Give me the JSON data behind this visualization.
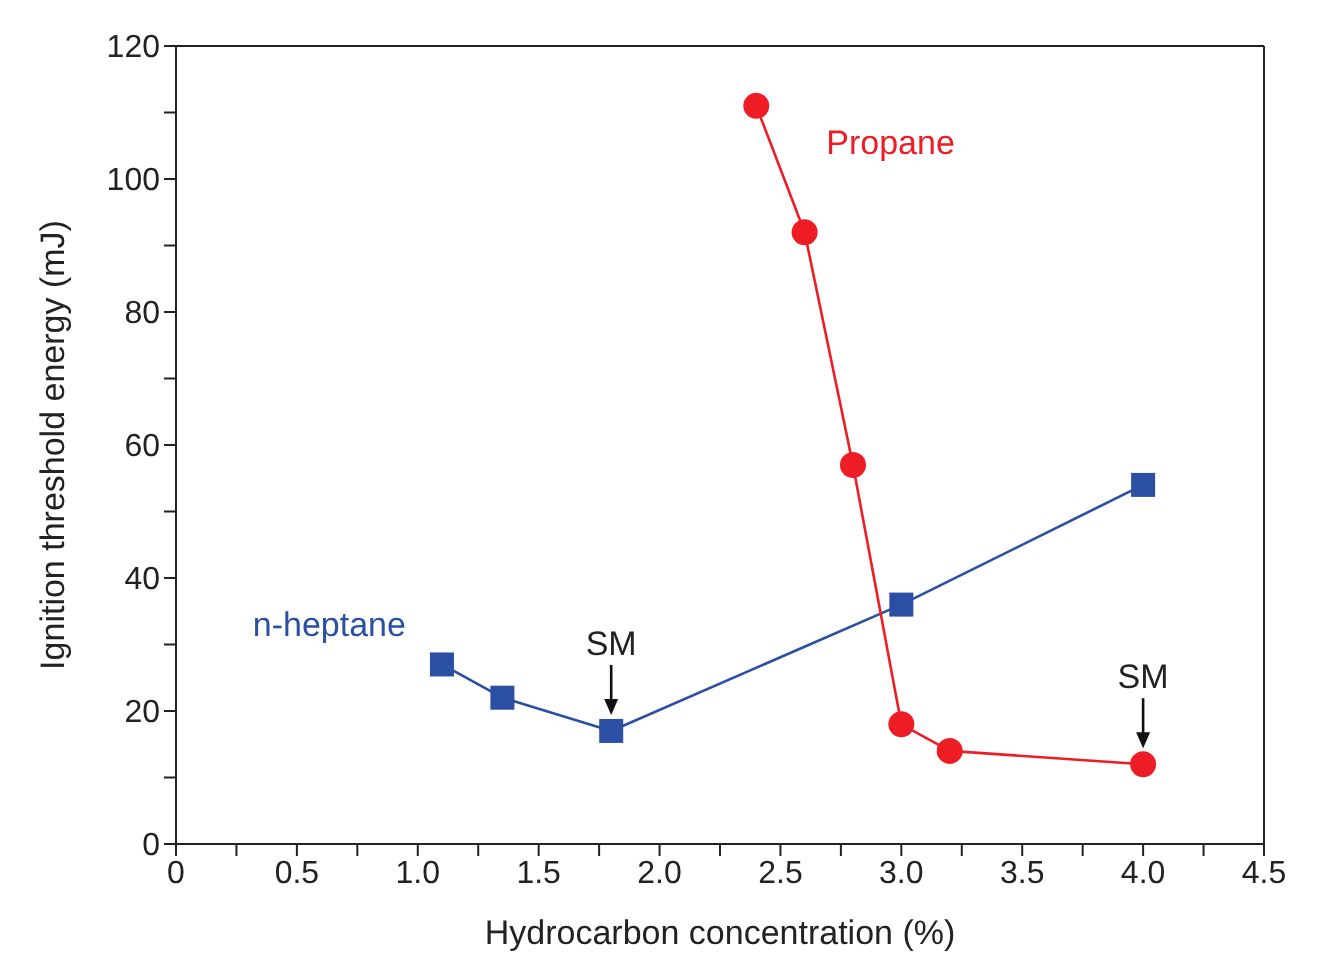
{
  "chart_data": {
    "type": "line",
    "xlabel": "Hydrocarbon concentration (%)",
    "ylabel": "Ignition threshold energy (mJ)",
    "xlim": [
      0,
      4.5
    ],
    "xticks": [
      0,
      {
        "value": 0.25,
        "label": null
      },
      0.5,
      {
        "value": 0.75,
        "label": null
      },
      {
        "value": 1,
        "label": "1.0"
      },
      {
        "value": 1.25,
        "label": null
      },
      1.5,
      {
        "value": 1.75,
        "label": null
      },
      {
        "value": 2,
        "label": "2.0"
      },
      {
        "value": 2.25,
        "label": null
      },
      2.5,
      {
        "value": 2.75,
        "label": null
      },
      {
        "value": 3,
        "label": "3.0"
      },
      {
        "value": 3.25,
        "label": null
      },
      3.5,
      {
        "value": 3.75,
        "label": null
      },
      {
        "value": 4,
        "label": "4.0"
      },
      {
        "value": 4.25,
        "label": null
      },
      4.5
    ],
    "ylim": [
      0,
      120
    ],
    "yticks": [
      0,
      {
        "value": 10,
        "label": null
      },
      20,
      {
        "value": 30,
        "label": null
      },
      40,
      {
        "value": 50,
        "label": null
      },
      60,
      {
        "value": 70,
        "label": null
      },
      80,
      {
        "value": 90,
        "label": null
      },
      100,
      {
        "value": 110,
        "label": null
      },
      120
    ],
    "line_style": "solid",
    "series": [
      {
        "name": "n-heptane",
        "color": "#2a4fa3",
        "marker": "square",
        "x": [
          1.1,
          1.35,
          1.8,
          3.0,
          4.0
        ],
        "values": [
          27,
          22,
          17,
          36,
          54
        ]
      },
      {
        "name": "Propane",
        "color": "#ee1c25",
        "marker": "circle",
        "x": [
          2.4,
          2.6,
          2.8,
          3.0,
          3.2,
          4.0
        ],
        "values": [
          111,
          92,
          57,
          18,
          14,
          12
        ]
      }
    ],
    "annotations": [
      {
        "text": "SM",
        "x": 1.8,
        "y": 17
      },
      {
        "text": "SM",
        "x": 4.0,
        "y": 12
      }
    ]
  }
}
